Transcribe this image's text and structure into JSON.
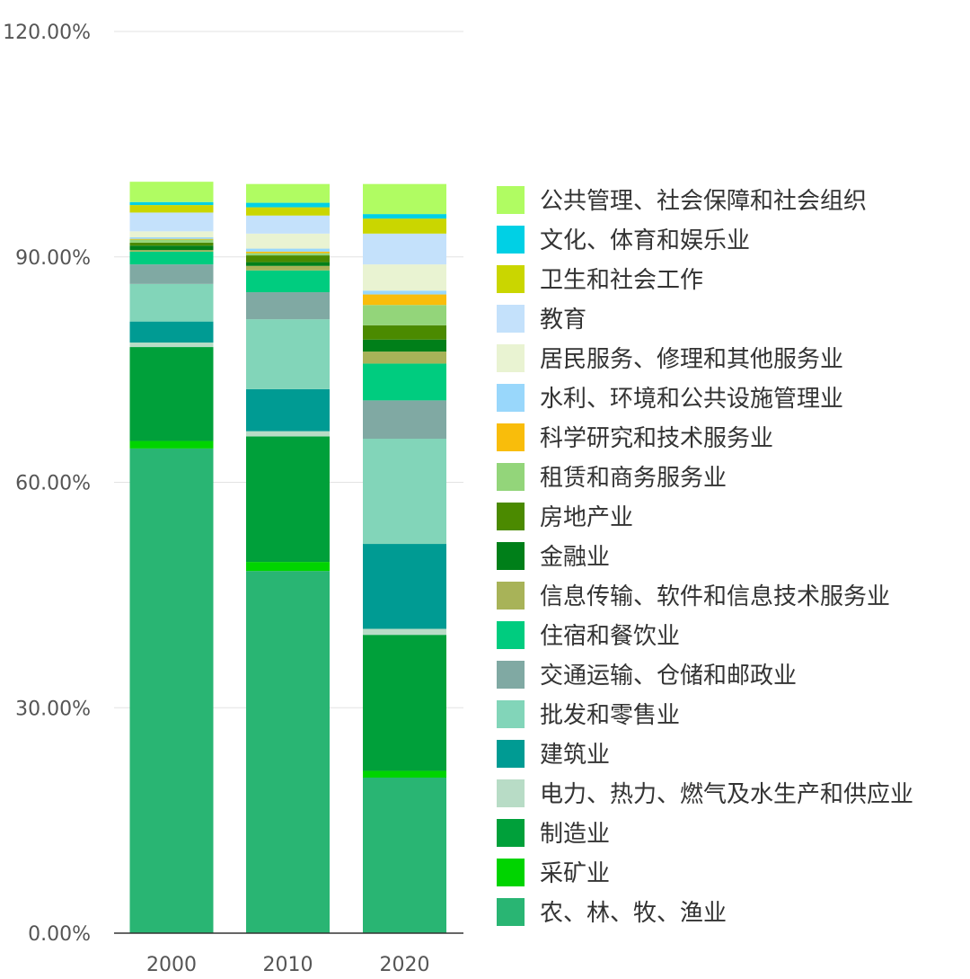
{
  "chart_data": {
    "type": "bar",
    "stacked": true,
    "title": "",
    "xlabel": "",
    "ylabel": "",
    "ylim": [
      0,
      120
    ],
    "yticks": [
      "0.00%",
      "30.00%",
      "60.00%",
      "90.00%",
      "120.00%"
    ],
    "ytick_values": [
      0,
      30,
      60,
      90,
      120
    ],
    "categories": [
      "2000",
      "2010",
      "2020"
    ],
    "legend_position": "right",
    "series": [
      {
        "name": "农、林、牧、渔业",
        "color": "#29b573",
        "values": [
          64.5,
          48.2,
          20.7
        ]
      },
      {
        "name": "采矿业",
        "color": "#00d400",
        "values": [
          1.0,
          1.2,
          0.9
        ]
      },
      {
        "name": "制造业",
        "color": "#00a03a",
        "values": [
          12.5,
          16.7,
          18.1
        ]
      },
      {
        "name": "电力、热力、燃气及水生产和供应业",
        "color": "#b8dcc6",
        "values": [
          0.6,
          0.7,
          0.8
        ]
      },
      {
        "name": "建筑业",
        "color": "#009b93",
        "values": [
          2.8,
          5.6,
          11.3
        ]
      },
      {
        "name": "批发和零售业",
        "color": "#82d5b9",
        "values": [
          5.0,
          9.3,
          14.0
        ]
      },
      {
        "name": "交通运输、仓储和邮政业",
        "color": "#80a9a3",
        "values": [
          2.6,
          3.6,
          5.1
        ]
      },
      {
        "name": "住宿和餐饮业",
        "color": "#00cc7f",
        "values": [
          1.7,
          2.9,
          4.9
        ]
      },
      {
        "name": "信息传输、软件和信息技术服务业",
        "color": "#a8b358",
        "values": [
          0.2,
          0.6,
          1.6
        ]
      },
      {
        "name": "金融业",
        "color": "#007f19",
        "values": [
          0.6,
          0.5,
          1.6
        ]
      },
      {
        "name": "房地产业",
        "color": "#4b8a00",
        "values": [
          0.4,
          0.9,
          1.9
        ]
      },
      {
        "name": "租赁和商务服务业",
        "color": "#93d57a",
        "values": [
          0.4,
          0.3,
          2.7
        ]
      },
      {
        "name": "科学研究和技术服务业",
        "color": "#f9bd0b",
        "values": [
          0.1,
          0.2,
          1.4
        ]
      },
      {
        "name": "水利、环境和公共设施管理业",
        "color": "#99d7fb",
        "values": [
          0.2,
          0.4,
          0.5
        ]
      },
      {
        "name": "居民服务、修理和其他服务业",
        "color": "#e9f3d2",
        "values": [
          0.8,
          2.0,
          3.5
        ]
      },
      {
        "name": "教育",
        "color": "#c4e1fb",
        "values": [
          2.5,
          2.4,
          4.1
        ]
      },
      {
        "name": "卫生和社会工作",
        "color": "#cad600",
        "values": [
          1.0,
          1.1,
          2.0
        ]
      },
      {
        "name": "文化、体育和娱乐业",
        "color": "#00d0e5",
        "values": [
          0.4,
          0.6,
          0.6
        ]
      },
      {
        "name": "公共管理、社会保障和社会组织",
        "color": "#b0fc62",
        "values": [
          2.7,
          2.5,
          4.0
        ]
      }
    ]
  }
}
